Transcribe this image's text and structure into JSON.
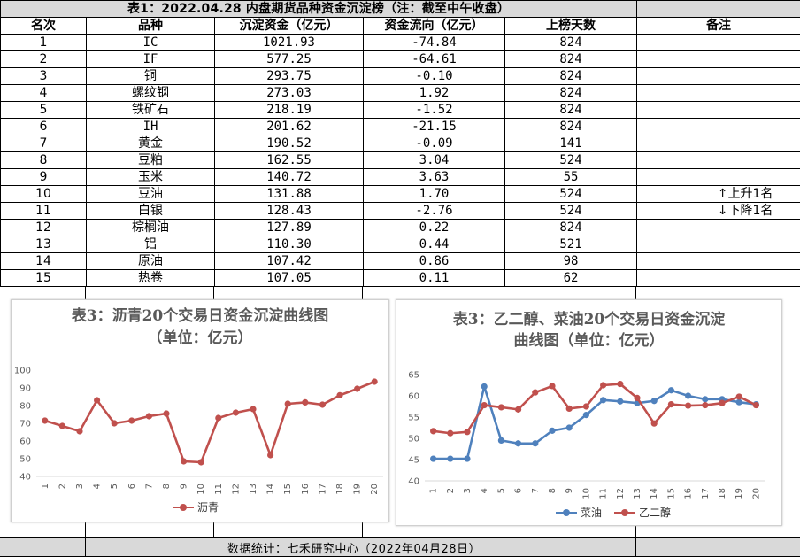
{
  "table": {
    "title": "表1：2022.04.28 内盘期货品种资金沉淀榜（注：截至中午收盘）",
    "headers": [
      "名次",
      "品种",
      "沉淀资金（亿元）",
      "资金流向（亿元）",
      "上榜天数",
      "备注"
    ],
    "rows": [
      [
        "1",
        "IC",
        "1021.93",
        "-74.84",
        "824",
        ""
      ],
      [
        "2",
        "IF",
        "577.25",
        "-64.61",
        "824",
        ""
      ],
      [
        "3",
        "铜",
        "293.75",
        "-0.10",
        "824",
        ""
      ],
      [
        "4",
        "螺纹钢",
        "273.03",
        "1.92",
        "824",
        ""
      ],
      [
        "5",
        "铁矿石",
        "218.19",
        "-1.52",
        "824",
        ""
      ],
      [
        "6",
        "IH",
        "201.62",
        "-21.15",
        "824",
        ""
      ],
      [
        "7",
        "黄金",
        "190.52",
        "-0.09",
        "141",
        ""
      ],
      [
        "8",
        "豆粕",
        "162.55",
        "3.04",
        "524",
        ""
      ],
      [
        "9",
        "玉米",
        "140.72",
        "3.63",
        "55",
        ""
      ],
      [
        "10",
        "豆油",
        "131.88",
        "1.70",
        "524",
        "↑上升1名"
      ],
      [
        "11",
        "白银",
        "128.43",
        "-2.76",
        "524",
        "↓下降1名"
      ],
      [
        "12",
        "棕榈油",
        "127.89",
        "0.22",
        "824",
        ""
      ],
      [
        "13",
        "铝",
        "110.30",
        "0.44",
        "521",
        ""
      ],
      [
        "14",
        "原油",
        "107.42",
        "0.86",
        "98",
        ""
      ],
      [
        "15",
        "热卷",
        "107.05",
        "0.11",
        "62",
        ""
      ]
    ]
  },
  "footer": "数据统计：七禾研究中心（2022年04月28日）",
  "chart_data": [
    {
      "type": "line",
      "title_line1": "表3：沥青20个交易日资金沉淀曲线图",
      "title_line2": "（单位：亿元）",
      "x": [
        "1",
        "2",
        "3",
        "4",
        "5",
        "6",
        "7",
        "8",
        "9",
        "10",
        "11",
        "12",
        "13",
        "14",
        "15",
        "16",
        "17",
        "18",
        "19",
        "20"
      ],
      "ylim": [
        40,
        100
      ],
      "yticks": [
        40,
        50,
        60,
        70,
        80,
        90,
        100
      ],
      "series": [
        {
          "name": "沥青",
          "color": "#c0504d",
          "values": [
            71.5,
            68.5,
            65.5,
            83,
            70,
            71.5,
            74,
            75.5,
            48.5,
            48,
            73,
            76,
            78,
            52,
            81,
            81.8,
            80.5,
            85.8,
            89.5,
            93.5
          ]
        }
      ],
      "grid": false,
      "legend": "bottom"
    },
    {
      "type": "line",
      "title_line1": "表3：乙二醇、菜油20个交易日资金沉淀",
      "title_line2": "曲线图（单位：亿元）",
      "x": [
        "1",
        "2",
        "3",
        "4",
        "5",
        "6",
        "7",
        "8",
        "9",
        "10",
        "11",
        "12",
        "13",
        "14",
        "15",
        "16",
        "17",
        "18",
        "19",
        "20"
      ],
      "ylim": [
        40,
        65
      ],
      "yticks": [
        40,
        45,
        50,
        55,
        60,
        65
      ],
      "series": [
        {
          "name": "菜油",
          "color": "#4f81bd",
          "values": [
            45.2,
            45.2,
            45.2,
            62.2,
            49.5,
            48.8,
            48.8,
            51.8,
            52.5,
            55.5,
            59,
            58.7,
            58.3,
            58.8,
            61.3,
            60,
            59.2,
            59.2,
            58.5,
            58
          ]
        },
        {
          "name": "乙二醇",
          "color": "#c0504d",
          "values": [
            51.7,
            51.2,
            51.5,
            57.8,
            57.3,
            56.8,
            60.8,
            62.3,
            57,
            57.5,
            62.5,
            62.8,
            59.5,
            53.5,
            58,
            57.7,
            57.8,
            58.3,
            59.8,
            57.8
          ]
        }
      ],
      "grid": false,
      "legend": "bottom"
    }
  ]
}
